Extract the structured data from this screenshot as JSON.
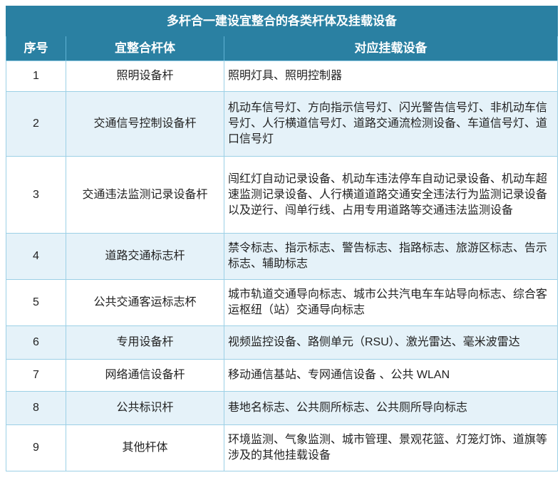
{
  "title": "多杆合一建设宜整合的各类杆体及挂载设备",
  "headers": [
    "序号",
    "宜整合杆体",
    "对应挂载设备"
  ],
  "rows": [
    {
      "no": "1",
      "pole": "照明设备杆",
      "devices": "照明灯具、照明控制器"
    },
    {
      "no": "2",
      "pole": "交通信号控制设备杆",
      "devices": "机动车信号灯、方向指示信号灯、闪光警告信号灯、非机动车信号灯、人行横道信号灯、道路交通流检测设备、车道信号灯、道口信号灯"
    },
    {
      "no": "3",
      "pole": "交通违法监测记录设备杆",
      "devices": "闯红灯自动记录设备、机动车违法停车自动记录设备、机动车超速监测记录设备、人行横道道路交通安全违法行为监测记录设备以及逆行、闯单行线、占用专用道路等交通违法监测设备"
    },
    {
      "no": "4",
      "pole": "道路交通标志杆",
      "devices": "禁令标志、指示标志、警告标志、指路标志、旅游区标志、告示标志、辅助标志"
    },
    {
      "no": "5",
      "pole": "公共交通客运标志杯",
      "devices": "城市轨道交通导向标志、城市公共汽电车车站导向标志、综合客运枢纽（站）交通导向标志"
    },
    {
      "no": "6",
      "pole": "专用设备杆",
      "devices": "视频监控设备、路侧单元（RSU）、激光雷达、毫米波雷达"
    },
    {
      "no": "7",
      "pole": "网络通信设备杆",
      "devices": "移动通信基站、专网通信设备 、公共 WLAN"
    },
    {
      "no": "8",
      "pole": "公共标识杆",
      "devices": "巷地名标志、公共厕所标志、公共厕所导向标志"
    },
    {
      "no": "9",
      "pole": "其他杆体",
      "devices": "环境监测、气象监测、城市管理、景观花篮、灯笼灯饰、道旗等涉及的其他挂载设备"
    }
  ]
}
